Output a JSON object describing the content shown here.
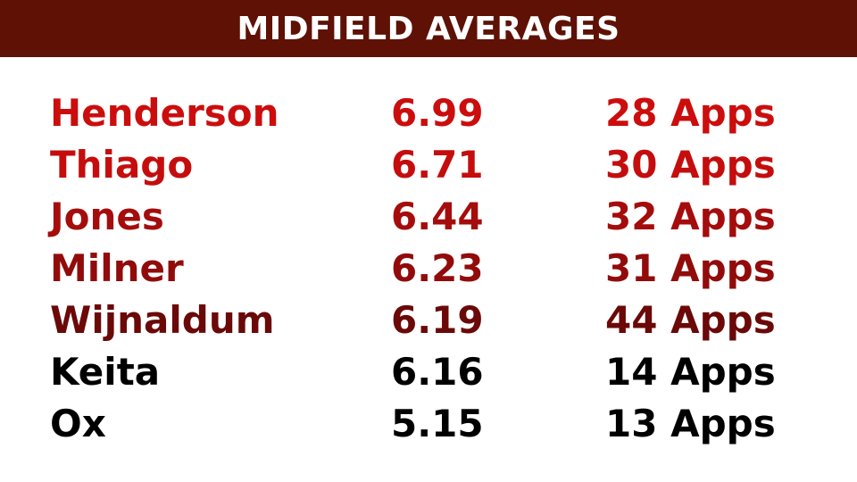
{
  "header": {
    "title": "MIDFIELD AVERAGES"
  },
  "colors": {
    "header_bg": "#5e1104"
  },
  "rows": [
    {
      "name": "Henderson",
      "average": "6.99",
      "apps": "28 Apps",
      "color": "#cc0d0d"
    },
    {
      "name": "Thiago",
      "average": "6.71",
      "apps": "30 Apps",
      "color": "#c50d0d"
    },
    {
      "name": "Jones",
      "average": "6.44",
      "apps": "32 Apps",
      "color": "#a50c0c"
    },
    {
      "name": "Milner",
      "average": "6.23",
      "apps": "31 Apps",
      "color": "#920b0b"
    },
    {
      "name": "Wijnaldum",
      "average": "6.19",
      "apps": "44 Apps",
      "color": "#6b0808"
    },
    {
      "name": "Keita",
      "average": "6.16",
      "apps": "14 Apps",
      "color": "#000000"
    },
    {
      "name": "Ox",
      "average": "5.15",
      "apps": "13 Apps",
      "color": "#000000"
    }
  ]
}
